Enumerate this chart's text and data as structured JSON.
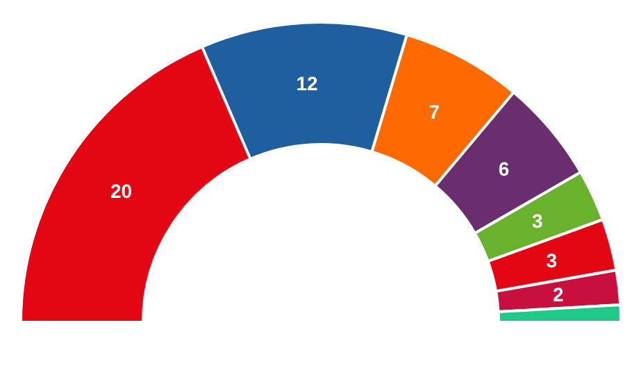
{
  "chart_data": {
    "type": "donut",
    "categories": [
      null,
      null,
      null,
      null,
      null,
      null,
      null,
      null
    ],
    "values": [
      20,
      12,
      7,
      6,
      3,
      3,
      2,
      1
    ],
    "value_labels": [
      "20",
      "12",
      "7",
      "6",
      "3",
      "3",
      "2",
      null
    ],
    "colors": [
      "#e30613",
      "#1f5fa0",
      "#ff6a00",
      "#6a2e6f",
      "#6ab22e",
      "#e30613",
      "#c8103f",
      "#1fc98a"
    ]
  }
}
